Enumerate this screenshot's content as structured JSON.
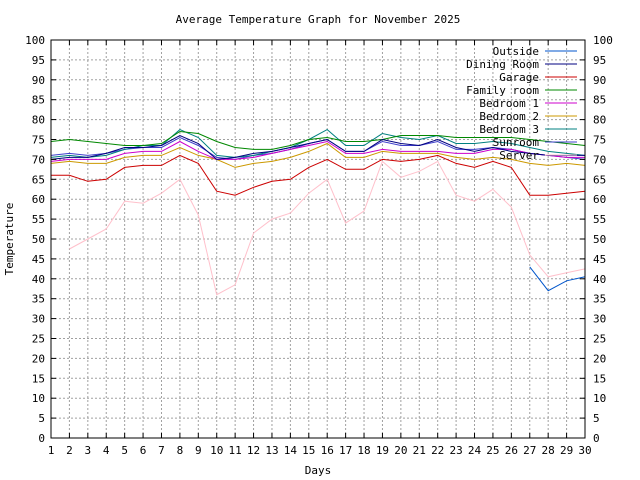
{
  "chart_data": {
    "type": "line",
    "title": "Average Temperature Graph for November 2025",
    "xlabel": "Days",
    "ylabel": "Temperature",
    "xlim": [
      1,
      30
    ],
    "ylim": [
      0,
      100
    ],
    "y_ticks": [
      0,
      5,
      10,
      15,
      20,
      25,
      30,
      35,
      40,
      45,
      50,
      55,
      60,
      65,
      70,
      75,
      80,
      85,
      90,
      95,
      100
    ],
    "x_ticks": [
      1,
      2,
      3,
      4,
      5,
      6,
      7,
      8,
      9,
      10,
      11,
      12,
      13,
      14,
      15,
      16,
      17,
      18,
      19,
      20,
      21,
      22,
      23,
      24,
      25,
      26,
      27,
      28,
      29,
      30
    ],
    "grid": true,
    "legend_position": "top-right",
    "series": [
      {
        "name": "Outside",
        "color": "#0055cc",
        "x": [
          27,
          28,
          29,
          30
        ],
        "values": [
          43,
          37,
          39.5,
          40.5
        ]
      },
      {
        "name": "Dining Room",
        "color": "#000080",
        "x": [
          1,
          2,
          3,
          4,
          5,
          6,
          7,
          8,
          9,
          10,
          11,
          12,
          13,
          14,
          15,
          16,
          17,
          18,
          19,
          20,
          21,
          22,
          23,
          24,
          25,
          26,
          27,
          28,
          29,
          30
        ],
        "values": [
          70,
          70.5,
          70.5,
          71.5,
          73,
          73,
          73.5,
          76,
          74,
          70,
          70.5,
          71.5,
          72,
          73,
          74,
          75,
          72,
          72,
          75,
          74,
          73.5,
          75,
          73,
          72,
          73,
          72,
          71.5,
          71,
          71,
          71
        ]
      },
      {
        "name": "Garage",
        "color": "#cc0000",
        "x": [
          1,
          2,
          3,
          4,
          5,
          6,
          7,
          8,
          9,
          10,
          11,
          12,
          13,
          14,
          15,
          16,
          17,
          18,
          19,
          20,
          21,
          22,
          23,
          24,
          25,
          26,
          27,
          28,
          29,
          30
        ],
        "values": [
          66,
          66,
          64.5,
          65,
          68,
          68.5,
          68.5,
          71,
          69,
          62,
          61,
          63,
          64.5,
          65,
          68,
          70,
          67.5,
          67.5,
          70,
          69.5,
          70,
          71,
          69,
          68,
          69.5,
          68,
          61,
          61,
          61.5,
          62
        ]
      },
      {
        "name": "Family room",
        "color": "#008800",
        "x": [
          1,
          2,
          3,
          4,
          5,
          6,
          7,
          8,
          9,
          10,
          11,
          12,
          13,
          14,
          15,
          16,
          17,
          18,
          19,
          20,
          21,
          22,
          23,
          24,
          25,
          26,
          27,
          28,
          29,
          30
        ],
        "values": [
          74.5,
          75,
          74.5,
          74,
          73.5,
          73.5,
          74,
          77,
          76.5,
          74.5,
          73,
          72.5,
          72.5,
          73.5,
          75,
          75.5,
          74.5,
          74.5,
          75,
          76,
          76,
          76,
          75.5,
          75.5,
          75.5,
          75.5,
          75,
          74.5,
          74,
          73.5
        ]
      },
      {
        "name": "Bedroom 1",
        "color": "#cc00cc",
        "x": [
          1,
          2,
          3,
          4,
          5,
          6,
          7,
          8,
          9,
          10,
          11,
          12,
          13,
          14,
          15,
          16,
          17,
          18,
          19,
          20,
          21,
          22,
          23,
          24,
          25,
          26,
          27,
          28,
          29,
          30
        ],
        "values": [
          69.5,
          70,
          70,
          70,
          71.5,
          72,
          72,
          74.5,
          72,
          70,
          70,
          70.5,
          71.5,
          72.5,
          73.5,
          74.5,
          71.5,
          71.5,
          72.5,
          72,
          72,
          72,
          71.5,
          71.5,
          72.5,
          72.5,
          71.5,
          71,
          70.5,
          70.5
        ]
      },
      {
        "name": "Bedroom 2",
        "color": "#cc9900",
        "x": [
          1,
          2,
          3,
          4,
          5,
          6,
          7,
          8,
          9,
          10,
          11,
          12,
          13,
          14,
          15,
          16,
          17,
          18,
          19,
          20,
          21,
          22,
          23,
          24,
          25,
          26,
          27,
          28,
          29,
          30
        ],
        "values": [
          69,
          69.5,
          69,
          69,
          70.5,
          71,
          71,
          73,
          71,
          70,
          68,
          69,
          69.5,
          70.5,
          72,
          74,
          70.5,
          70.5,
          72,
          71.5,
          71.5,
          71.5,
          70.5,
          70,
          70.5,
          70,
          69,
          68.5,
          69,
          68.5
        ]
      },
      {
        "name": "Bedroom 3",
        "color": "#008080",
        "x": [
          1,
          2,
          3,
          4,
          5,
          6,
          7,
          8,
          9,
          10,
          11,
          12,
          13,
          14,
          15,
          16,
          17,
          18,
          19,
          20,
          21,
          22,
          23,
          24,
          25,
          26,
          27,
          28,
          29,
          30
        ],
        "values": [
          70.5,
          71,
          70.5,
          71,
          72.5,
          73.5,
          73.5,
          77.5,
          75.5,
          71,
          70.5,
          71,
          72,
          73,
          75,
          77.5,
          73.5,
          73.5,
          76.5,
          75.5,
          75,
          76,
          74,
          74,
          74.5,
          74,
          73,
          72,
          71.5,
          71
        ]
      },
      {
        "name": "Sunroom",
        "color": "#4040cc",
        "x": [
          1,
          2,
          3,
          4,
          5,
          6,
          7,
          8,
          9,
          10,
          11,
          12,
          13,
          14,
          15,
          16,
          17,
          18,
          19,
          20,
          21,
          22,
          23,
          24,
          25,
          26,
          27,
          28,
          29,
          30
        ],
        "values": [
          71,
          71.5,
          71,
          71.5,
          72.5,
          73,
          73,
          75.5,
          73.5,
          70.5,
          70,
          71,
          71.5,
          72.5,
          74,
          75,
          72,
          72,
          74.5,
          73.5,
          73.5,
          74.5,
          72.5,
          72.5,
          73,
          72.5,
          71.5,
          71,
          70.5,
          70
        ]
      },
      {
        "name": "Server",
        "color": "#ffc0cb",
        "x": [
          2,
          3,
          4,
          5,
          6,
          7,
          8,
          9,
          10,
          11,
          12,
          13,
          14,
          15,
          16,
          17,
          18,
          19,
          20,
          21,
          22,
          23,
          24,
          25,
          26,
          27,
          28,
          29,
          30
        ],
        "values": [
          47.5,
          50,
          52.5,
          59.5,
          59,
          61.5,
          65,
          56,
          36,
          38.5,
          51.5,
          55,
          56.5,
          61.5,
          65,
          54,
          57,
          69.5,
          65.5,
          67,
          69.5,
          61,
          59.5,
          62.5,
          58,
          46,
          40.5,
          41.5,
          42.5
        ]
      }
    ]
  }
}
